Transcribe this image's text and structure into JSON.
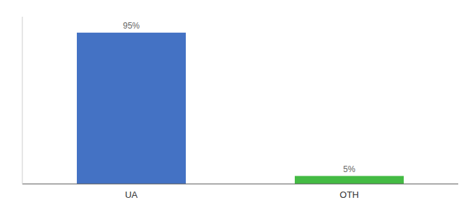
{
  "chart_data": {
    "type": "bar",
    "categories": [
      "UA",
      "OTH"
    ],
    "values": [
      95,
      5
    ],
    "value_labels": [
      "95%",
      "5%"
    ],
    "colors": [
      "#4472c4",
      "#44bb44"
    ],
    "ylim": [
      0,
      105
    ],
    "data_labels": true,
    "tick_labels": "x",
    "grid": false
  }
}
